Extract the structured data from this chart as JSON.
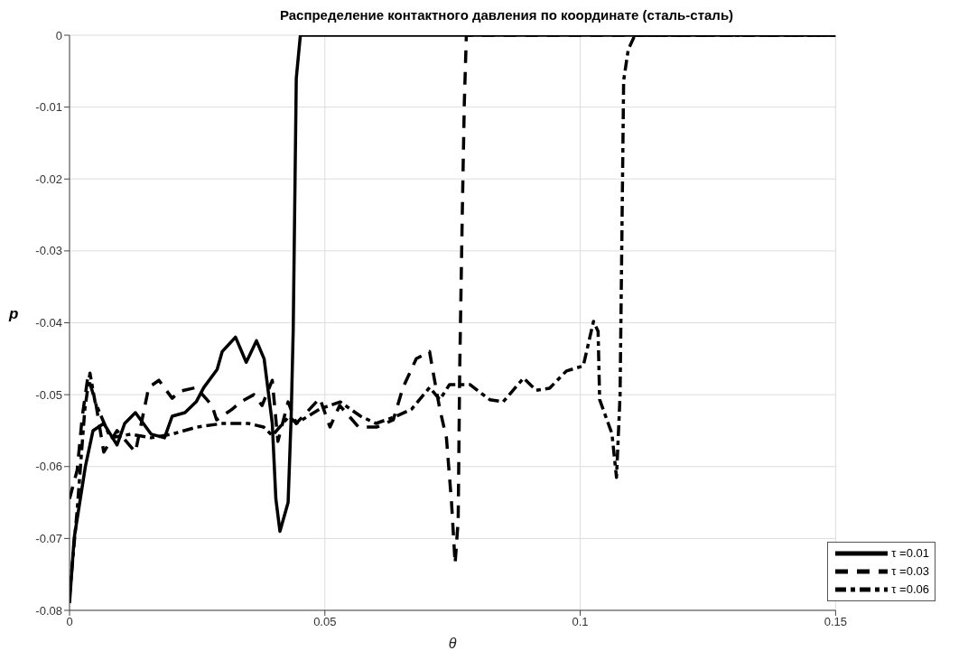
{
  "chart_data": {
    "type": "line",
    "title": "Распределение контактного давления по координате (сталь-сталь)",
    "xlabel": "θ",
    "ylabel": "p",
    "xlim": [
      0,
      0.15
    ],
    "xticks": [
      0,
      0.05,
      0.1,
      0.15
    ],
    "ylim": [
      -0.08,
      0
    ],
    "yticks": [
      -0.08,
      -0.07,
      -0.06,
      -0.05,
      -0.04,
      -0.03,
      -0.02,
      -0.01,
      0
    ],
    "grid": true,
    "legend": "bottom right",
    "series": [
      {
        "name": "τ =0.01",
        "color": "#000000",
        "line_style": "solid",
        "x": [
          0,
          0.0009,
          0.0031,
          0.0046,
          0.0067,
          0.0093,
          0.0108,
          0.0129,
          0.016,
          0.0186,
          0.0201,
          0.0226,
          0.0248,
          0.0263,
          0.0289,
          0.0299,
          0.0325,
          0.0346,
          0.0366,
          0.0381,
          0.0397,
          0.0404,
          0.0412,
          0.0428,
          0.0434,
          0.0438,
          0.0444,
          0.0452,
          0.15
        ],
        "values": [
          -0.079,
          -0.07,
          -0.06,
          -0.055,
          -0.054,
          -0.057,
          -0.054,
          -0.0525,
          -0.0555,
          -0.056,
          -0.053,
          -0.0525,
          -0.051,
          -0.049,
          -0.0465,
          -0.044,
          -0.042,
          -0.0455,
          -0.0425,
          -0.045,
          -0.054,
          -0.0645,
          -0.069,
          -0.065,
          -0.053,
          -0.041,
          -0.006,
          0,
          0
        ]
      },
      {
        "name": "τ =0.03",
        "color": "#000000",
        "line_style": "dashed",
        "x": [
          0,
          0.0015,
          0.0025,
          0.0036,
          0.0051,
          0.0067,
          0.0093,
          0.0129,
          0.0155,
          0.0175,
          0.0201,
          0.0217,
          0.0248,
          0.0279,
          0.0288,
          0.0319,
          0.0335,
          0.0361,
          0.0377,
          0.0397,
          0.0408,
          0.0428,
          0.0444,
          0.049,
          0.051,
          0.0529,
          0.0566,
          0.0602,
          0.0634,
          0.0653,
          0.0679,
          0.0705,
          0.0711,
          0.0725,
          0.0738,
          0.0748,
          0.0755,
          0.0761,
          0.0764,
          0.0769,
          0.0773,
          0.0777,
          0.15
        ],
        "values": [
          -0.0645,
          -0.0605,
          -0.053,
          -0.0475,
          -0.051,
          -0.058,
          -0.055,
          -0.058,
          -0.049,
          -0.048,
          -0.0505,
          -0.0495,
          -0.049,
          -0.0515,
          -0.0535,
          -0.052,
          -0.051,
          -0.05,
          -0.0515,
          -0.048,
          -0.0565,
          -0.051,
          -0.054,
          -0.0505,
          -0.0545,
          -0.0515,
          -0.0545,
          -0.0545,
          -0.0535,
          -0.049,
          -0.045,
          -0.044,
          -0.0465,
          -0.052,
          -0.056,
          -0.065,
          -0.0735,
          -0.0675,
          -0.0465,
          -0.025,
          -0.0095,
          0,
          0
        ]
      },
      {
        "name": "τ =0.06",
        "color": "#000000",
        "line_style": "dashdot",
        "x": [
          0,
          0.0015,
          0.003,
          0.004,
          0.005,
          0.008,
          0.012,
          0.016,
          0.02,
          0.025,
          0.03,
          0.035,
          0.038,
          0.0397,
          0.043,
          0.0444,
          0.049,
          0.053,
          0.057,
          0.06,
          0.064,
          0.067,
          0.0705,
          0.0725,
          0.0744,
          0.0784,
          0.0823,
          0.0849,
          0.0889,
          0.0914,
          0.094,
          0.0973,
          0.1006,
          0.1026,
          0.1035,
          0.1038,
          0.1062,
          0.1071,
          0.1078,
          0.1082,
          0.1085,
          0.1094,
          0.1107,
          0.15
        ],
        "values": [
          -0.078,
          -0.066,
          -0.052,
          -0.047,
          -0.051,
          -0.056,
          -0.0555,
          -0.056,
          -0.0555,
          -0.0545,
          -0.054,
          -0.054,
          -0.0545,
          -0.0557,
          -0.053,
          -0.054,
          -0.052,
          -0.051,
          -0.053,
          -0.054,
          -0.053,
          -0.052,
          -0.049,
          -0.0507,
          -0.0486,
          -0.0486,
          -0.0507,
          -0.051,
          -0.0477,
          -0.0494,
          -0.0491,
          -0.0467,
          -0.046,
          -0.0398,
          -0.0412,
          -0.0507,
          -0.0554,
          -0.0615,
          -0.0501,
          -0.0253,
          -0.0063,
          -0.002,
          0,
          0
        ]
      }
    ]
  }
}
